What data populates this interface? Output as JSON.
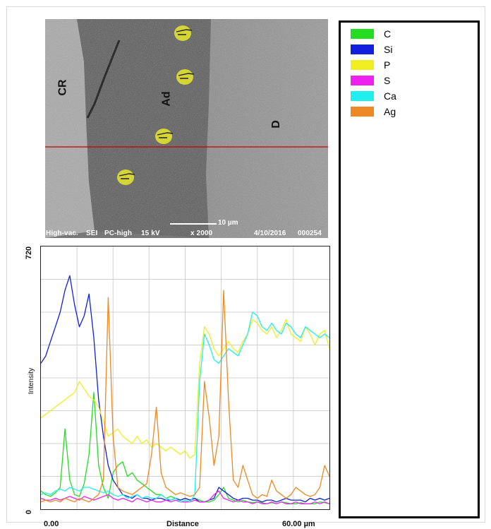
{
  "micrograph": {
    "region_labels": [
      "CR",
      "Ad",
      "D"
    ],
    "scale_bar": "10 µm",
    "hud": {
      "mode": "High-vac.",
      "detector": "SEI",
      "probe": "PC-high",
      "voltage": "15 kV",
      "magnification": "x 2000",
      "date": "4/10/2016",
      "frame": "000254"
    },
    "scan_line_color": "#cc0000",
    "marker_icon": "pointing-hand-icon",
    "marker_color": "#e6e62e"
  },
  "chart_data": {
    "type": "line",
    "title": "",
    "xlabel": "Distance",
    "ylabel": "Intensity",
    "x_tick_labels": [
      "0.00",
      "60.00 µm"
    ],
    "y_tick_labels": [
      "0",
      "720"
    ],
    "xlim": [
      0,
      60
    ],
    "ylim": [
      0,
      720
    ],
    "grid": true,
    "legend_position": "right",
    "x": [
      0,
      1,
      2,
      3,
      4,
      5,
      6,
      7,
      8,
      9,
      10,
      11,
      12,
      13,
      14,
      15,
      16,
      17,
      18,
      19,
      20,
      21,
      22,
      23,
      24,
      25,
      26,
      27,
      28,
      29,
      30,
      31,
      32,
      33,
      34,
      35,
      36,
      37,
      38,
      39,
      40,
      41,
      42,
      43,
      44,
      45,
      46,
      47,
      48,
      49,
      50,
      51,
      52,
      53,
      54,
      55,
      56,
      57,
      58,
      59,
      60
    ],
    "series": [
      {
        "name": "C",
        "color": "#22dd22",
        "values": [
          50,
          40,
          35,
          45,
          60,
          220,
          80,
          40,
          35,
          70,
          150,
          320,
          120,
          60,
          30,
          100,
          120,
          130,
          90,
          100,
          80,
          70,
          60,
          50,
          40,
          40,
          30,
          35,
          30,
          25,
          30,
          25,
          30,
          25,
          20,
          20,
          25,
          40,
          60,
          30,
          25,
          20,
          25,
          20,
          18,
          20,
          18,
          15,
          18,
          15,
          20,
          18,
          15,
          15,
          18,
          15,
          15,
          15,
          20,
          18,
          15
        ]
      },
      {
        "name": "Si",
        "color": "#1020dd",
        "values": [
          400,
          420,
          460,
          500,
          540,
          600,
          640,
          560,
          500,
          530,
          590,
          470,
          300,
          200,
          120,
          80,
          60,
          40,
          35,
          30,
          40,
          30,
          30,
          25,
          30,
          30,
          25,
          25,
          30,
          25,
          30,
          25,
          30,
          20,
          20,
          25,
          30,
          60,
          50,
          40,
          30,
          25,
          30,
          30,
          25,
          25,
          20,
          25,
          25,
          20,
          25,
          30,
          25,
          25,
          25,
          20,
          30,
          25,
          30,
          25,
          30
        ]
      },
      {
        "name": "P",
        "color": "#eeee22",
        "values": [
          250,
          260,
          270,
          280,
          290,
          300,
          310,
          320,
          350,
          330,
          310,
          300,
          280,
          240,
          200,
          210,
          220,
          200,
          190,
          180,
          200,
          180,
          190,
          170,
          180,
          170,
          160,
          170,
          160,
          150,
          160,
          140,
          150,
          400,
          500,
          480,
          440,
          420,
          440,
          460,
          440,
          430,
          460,
          480,
          520,
          510,
          490,
          480,
          500,
          470,
          490,
          520,
          480,
          470,
          460,
          500,
          480,
          450,
          480,
          490,
          440
        ]
      },
      {
        "name": "S",
        "color": "#ee22ee",
        "values": [
          30,
          25,
          25,
          30,
          25,
          30,
          35,
          30,
          25,
          35,
          30,
          25,
          30,
          35,
          40,
          30,
          25,
          30,
          25,
          20,
          30,
          25,
          20,
          25,
          20,
          20,
          25,
          20,
          25,
          20,
          20,
          20,
          25,
          20,
          20,
          25,
          40,
          50,
          30,
          25,
          20,
          25,
          20,
          20,
          15,
          20,
          15,
          15,
          20,
          15,
          20,
          15,
          15,
          20,
          15,
          15,
          15,
          20,
          15,
          20,
          15
        ]
      },
      {
        "name": "Ca",
        "color": "#22eeee",
        "values": [
          40,
          45,
          40,
          50,
          55,
          50,
          60,
          55,
          50,
          60,
          60,
          55,
          50,
          45,
          50,
          40,
          35,
          40,
          30,
          35,
          40,
          30,
          35,
          30,
          30,
          40,
          30,
          25,
          30,
          20,
          25,
          20,
          40,
          350,
          480,
          450,
          410,
          400,
          420,
          440,
          430,
          420,
          450,
          480,
          540,
          530,
          500,
          490,
          510,
          490,
          480,
          510,
          500,
          480,
          470,
          500,
          490,
          480,
          470,
          480,
          470
        ]
      },
      {
        "name": "Ag",
        "color": "#ee8822",
        "values": [
          20,
          25,
          20,
          25,
          20,
          30,
          25,
          20,
          30,
          25,
          20,
          30,
          40,
          80,
          580,
          200,
          60,
          50,
          45,
          40,
          50,
          60,
          70,
          150,
          280,
          100,
          60,
          50,
          40,
          45,
          40,
          35,
          40,
          60,
          350,
          250,
          120,
          200,
          600,
          300,
          80,
          60,
          120,
          80,
          40,
          30,
          40,
          35,
          80,
          50,
          40,
          30,
          40,
          60,
          50,
          40,
          35,
          40,
          60,
          120,
          90
        ]
      }
    ]
  },
  "legend": {
    "items": [
      {
        "label": "C",
        "color": "#22dd22"
      },
      {
        "label": "Si",
        "color": "#1020dd"
      },
      {
        "label": "P",
        "color": "#eeee22"
      },
      {
        "label": "S",
        "color": "#ee22ee"
      },
      {
        "label": "Ca",
        "color": "#22eeee"
      },
      {
        "label": "Ag",
        "color": "#ee8822"
      }
    ]
  }
}
